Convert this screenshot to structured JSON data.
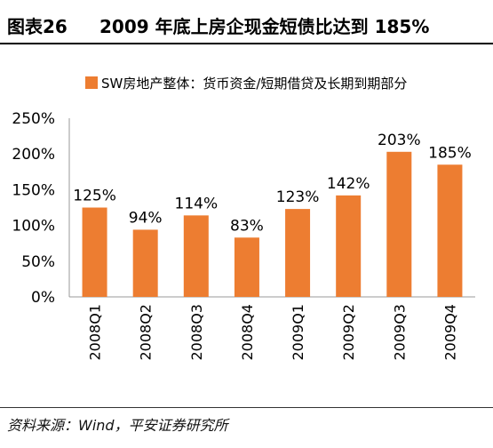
{
  "header": {
    "figure_number": "图表26",
    "title": "2009 年底上房企现金短债比达到 185%"
  },
  "source": "资料来源：Wind，平安证券研究所",
  "colors": {
    "bar": "#ED7D31",
    "axis": "#999999",
    "text": "#000000"
  },
  "chart_data": {
    "type": "bar",
    "title": "",
    "xlabel": "",
    "ylabel": "",
    "legend_position": "top",
    "grid": false,
    "categories": [
      "2008Q1",
      "2008Q2",
      "2008Q3",
      "2008Q4",
      "2009Q1",
      "2009Q2",
      "2009Q3",
      "2009Q4"
    ],
    "series": [
      {
        "name": "SW房地产整体：货币资金/短期借贷及长期到期部分",
        "values": [
          125,
          94,
          114,
          83,
          123,
          142,
          203,
          185
        ],
        "labels": [
          "125%",
          "94%",
          "114%",
          "83%",
          "123%",
          "142%",
          "203%",
          "185%"
        ]
      }
    ],
    "ylim": [
      0,
      250
    ],
    "yticks": [
      0,
      50,
      100,
      150,
      200,
      250
    ],
    "ytick_labels": [
      "0%",
      "50%",
      "100%",
      "150%",
      "200%",
      "250%"
    ]
  }
}
